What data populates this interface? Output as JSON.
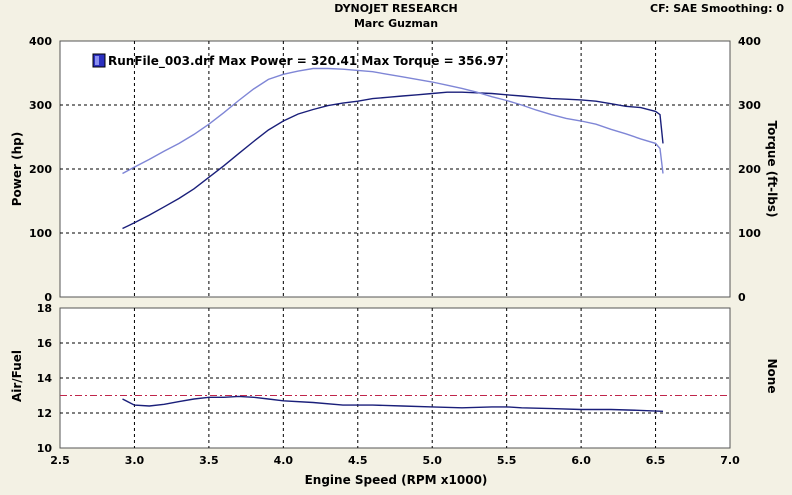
{
  "header": {
    "company": "DYNOJET RESEARCH",
    "user": "Marc Guzman",
    "correction": "CF: SAE  Smoothing: 0"
  },
  "legend": {
    "label": "RunFile_003.drf Max Power = 320.41 Max Torque = 356.97"
  },
  "colors": {
    "power_line": "#1a1f7a",
    "torque_line": "#7f86d6",
    "afr_line": "#1a1f7a",
    "afr_target": "#c0264b",
    "panel_bg": "#ffffff",
    "page_bg": "#f3f1e4"
  },
  "chart_data": [
    {
      "type": "line",
      "panel": "top",
      "xlabel": "Engine Speed (RPM x1000)",
      "ylabel": "Power (hp)",
      "y2label": "Torque (ft-lbs)",
      "xlim": [
        2.5,
        7.0
      ],
      "ylim": [
        0,
        400
      ],
      "y2lim": [
        0,
        400
      ],
      "xticks": [
        "2.5",
        "3.0",
        "3.5",
        "4.0",
        "4.5",
        "5.0",
        "5.5",
        "6.0",
        "6.5",
        "7.0"
      ],
      "yticks": [
        "0",
        "100",
        "200",
        "300",
        "400"
      ],
      "grid": true,
      "legend_position": "top-left",
      "series": [
        {
          "name": "Power",
          "axis": "left",
          "x": [
            2.92,
            3.0,
            3.1,
            3.2,
            3.3,
            3.4,
            3.5,
            3.6,
            3.7,
            3.8,
            3.9,
            4.0,
            4.1,
            4.2,
            4.3,
            4.4,
            4.5,
            4.6,
            4.7,
            4.8,
            4.9,
            5.0,
            5.1,
            5.2,
            5.3,
            5.4,
            5.5,
            5.6,
            5.7,
            5.8,
            5.9,
            6.0,
            6.1,
            6.2,
            6.3,
            6.4,
            6.5,
            6.53,
            6.55
          ],
          "y": [
            107,
            116,
            128,
            141,
            154,
            169,
            187,
            205,
            224,
            243,
            261,
            275,
            286,
            293,
            299,
            303,
            306,
            310,
            312,
            314,
            316,
            318,
            320,
            320,
            319,
            318,
            316,
            314,
            312,
            310,
            309,
            308,
            306,
            302,
            298,
            296,
            290,
            285,
            240
          ]
        },
        {
          "name": "Torque",
          "axis": "right",
          "x": [
            2.92,
            3.0,
            3.1,
            3.2,
            3.3,
            3.4,
            3.5,
            3.6,
            3.7,
            3.8,
            3.9,
            4.0,
            4.1,
            4.2,
            4.3,
            4.4,
            4.5,
            4.6,
            4.7,
            4.8,
            4.9,
            5.0,
            5.1,
            5.2,
            5.3,
            5.4,
            5.5,
            5.6,
            5.7,
            5.8,
            5.9,
            6.0,
            6.1,
            6.2,
            6.3,
            6.4,
            6.5,
            6.53,
            6.55
          ],
          "y": [
            193,
            203,
            215,
            228,
            240,
            254,
            270,
            288,
            307,
            325,
            340,
            348,
            353,
            357,
            357,
            356,
            354,
            352,
            348,
            344,
            340,
            336,
            331,
            326,
            320,
            313,
            307,
            300,
            292,
            285,
            279,
            275,
            270,
            262,
            255,
            247,
            240,
            232,
            193
          ]
        }
      ]
    },
    {
      "type": "line",
      "panel": "bottom",
      "xlabel": "Engine Speed (RPM x1000)",
      "ylabel": "Air/Fuel",
      "y2label": "None",
      "xlim": [
        2.5,
        7.0
      ],
      "ylim": [
        10,
        18
      ],
      "xticks": [
        "2.5",
        "3.0",
        "3.5",
        "4.0",
        "4.5",
        "5.0",
        "5.5",
        "6.0",
        "6.5",
        "7.0"
      ],
      "yticks": [
        "10",
        "12",
        "14",
        "16",
        "18"
      ],
      "grid": true,
      "reference_line": 13.0,
      "series": [
        {
          "name": "Air/Fuel",
          "x": [
            2.92,
            3.0,
            3.1,
            3.2,
            3.3,
            3.4,
            3.5,
            3.6,
            3.7,
            3.8,
            3.9,
            4.0,
            4.2,
            4.4,
            4.6,
            4.8,
            5.0,
            5.2,
            5.4,
            5.5,
            5.6,
            5.8,
            6.0,
            6.2,
            6.4,
            6.55
          ],
          "y": [
            12.8,
            12.45,
            12.4,
            12.5,
            12.65,
            12.8,
            12.9,
            12.9,
            12.95,
            12.9,
            12.8,
            12.7,
            12.6,
            12.45,
            12.45,
            12.4,
            12.35,
            12.3,
            12.35,
            12.35,
            12.3,
            12.25,
            12.2,
            12.2,
            12.15,
            12.1
          ]
        }
      ]
    }
  ]
}
